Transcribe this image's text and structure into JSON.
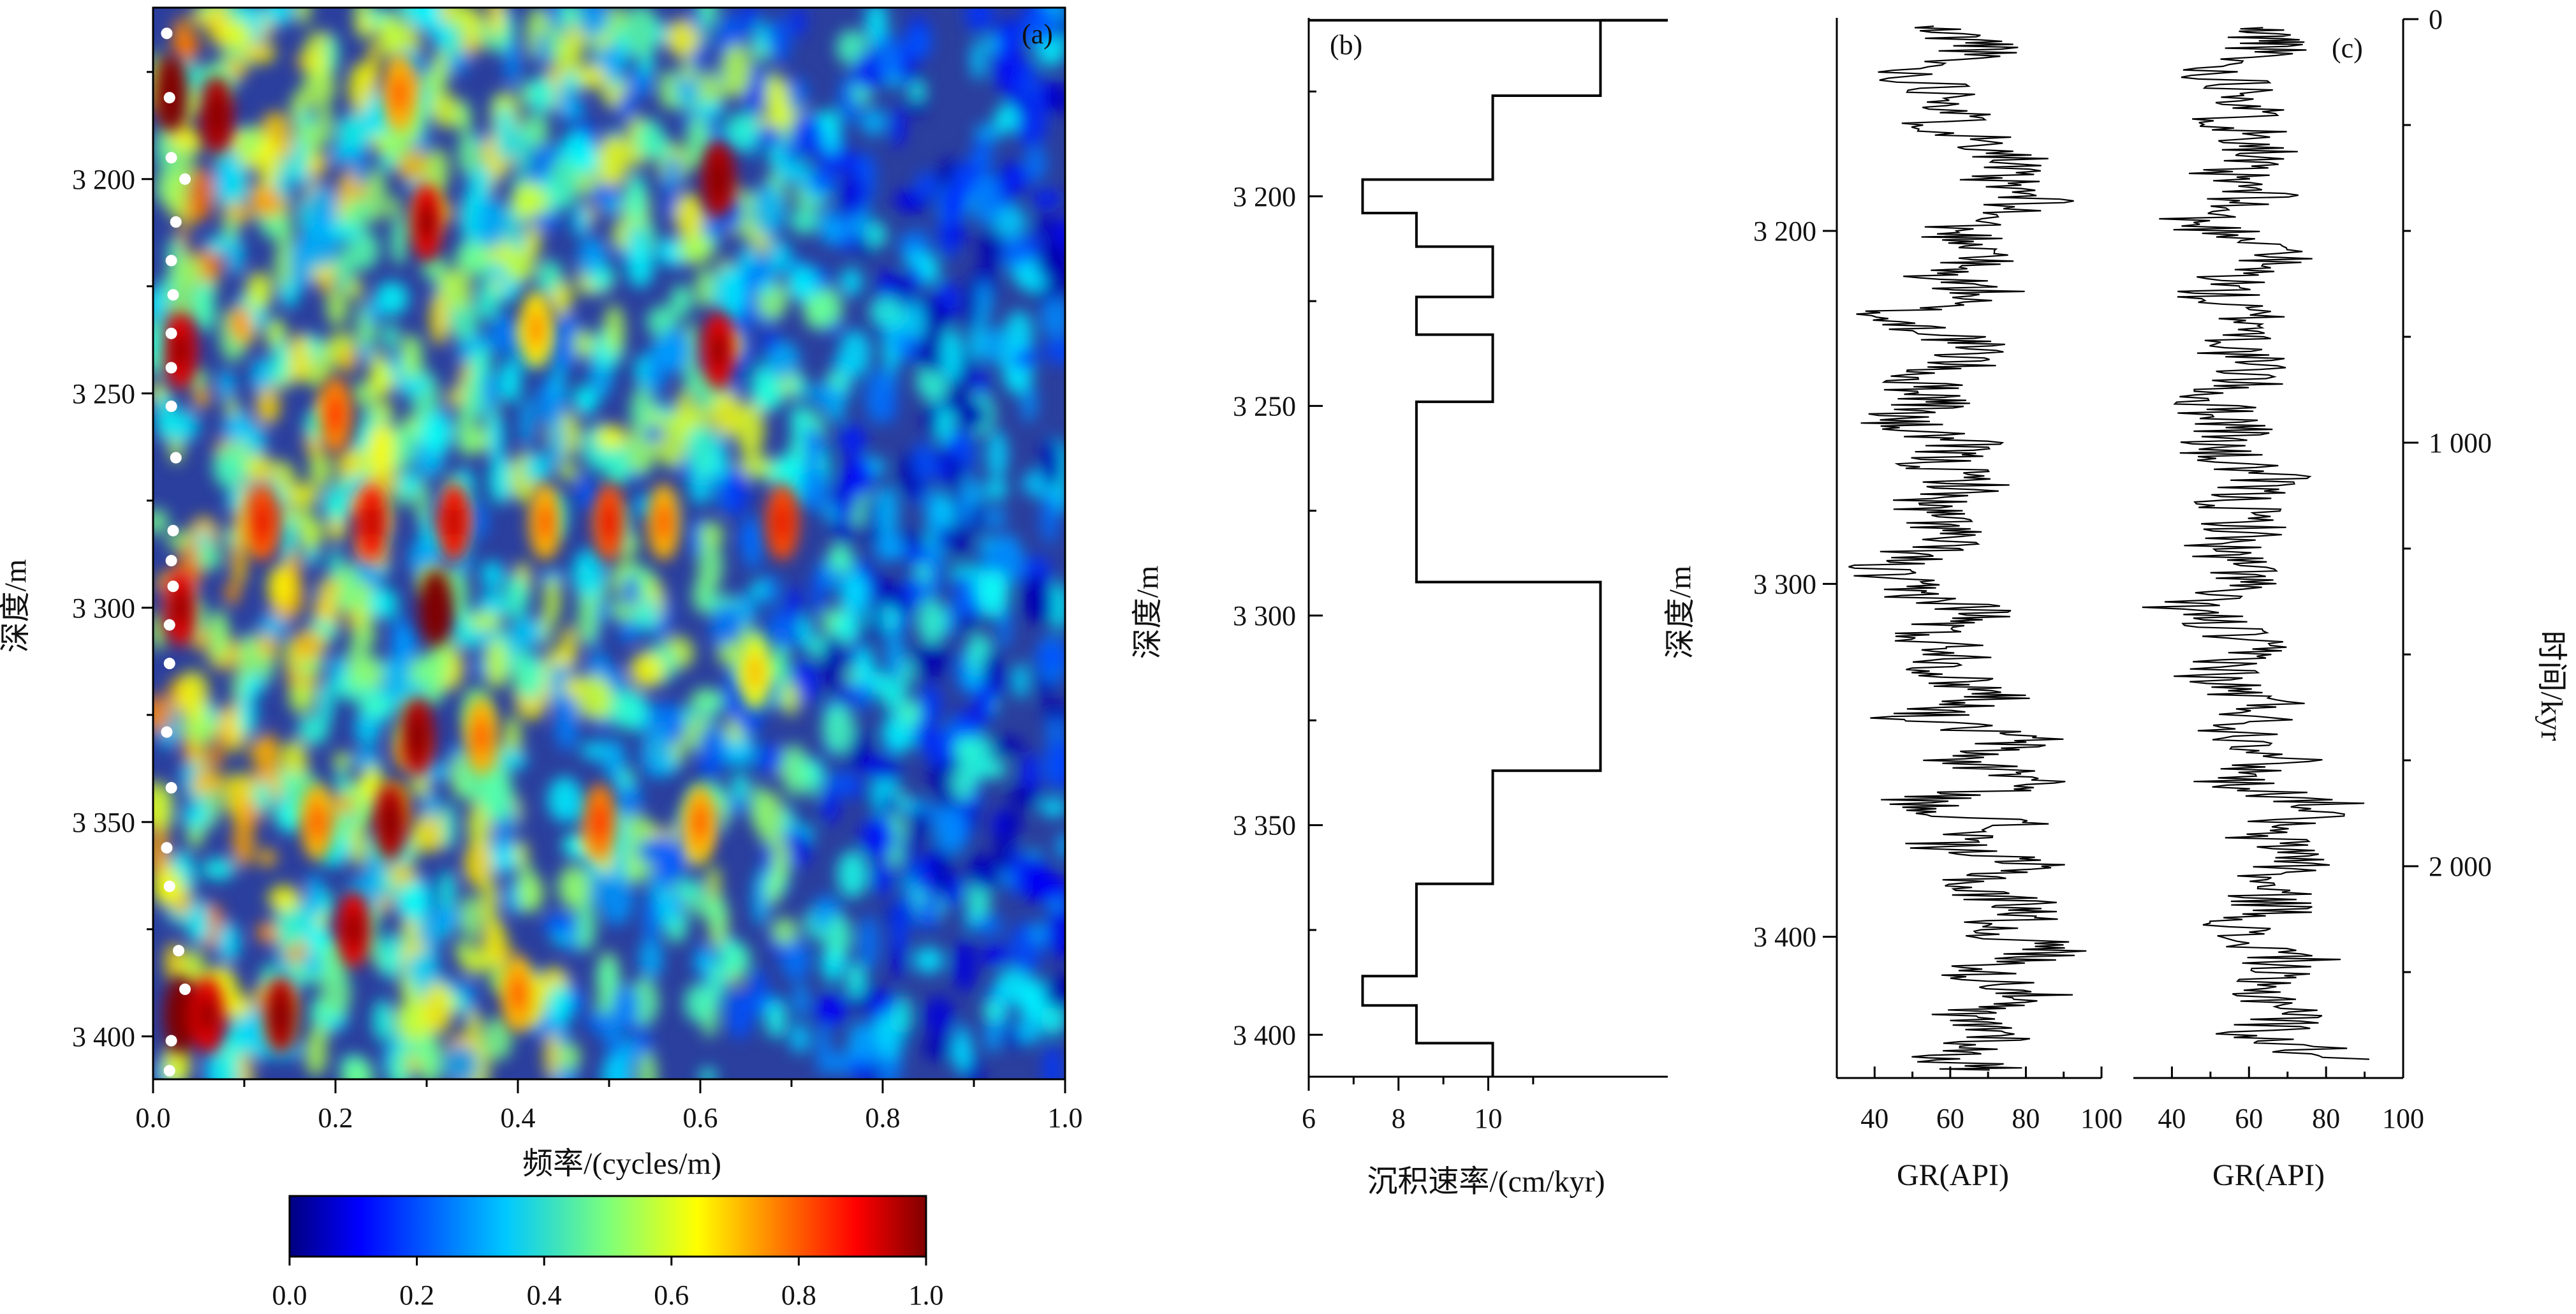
{
  "chart_data": [
    {
      "panel": "(a)",
      "type": "heatmap",
      "xlabel": "频率/(cycles/m)",
      "ylabel": "深度/m",
      "xlim": [
        0.0,
        1.0
      ],
      "ylim": [
        3410,
        3160
      ],
      "x_ticks": [
        "0.0",
        "0.2",
        "0.4",
        "0.6",
        "0.8",
        "1.0"
      ],
      "x_tick_values": [
        0.0,
        0.2,
        0.4,
        0.6,
        0.8,
        1.0
      ],
      "y_ticks": [
        "3 200",
        "3 250",
        "3 300",
        "3 350",
        "3 400"
      ],
      "y_tick_values": [
        3200,
        3250,
        3300,
        3350,
        3400
      ],
      "colorbar": {
        "ticks": [
          "0.0",
          "0.2",
          "0.4",
          "0.6",
          "0.8",
          "1.0"
        ],
        "tick_values": [
          0.0,
          0.2,
          0.4,
          0.6,
          0.8,
          1.0
        ],
        "colormap": "jet",
        "range": [
          0.0,
          1.0
        ]
      },
      "ridge_points": {
        "marker": "white-dot",
        "points": [
          [
            0.015,
            3166
          ],
          [
            0.018,
            3181
          ],
          [
            0.02,
            3195
          ],
          [
            0.035,
            3200
          ],
          [
            0.025,
            3210
          ],
          [
            0.02,
            3219
          ],
          [
            0.022,
            3227
          ],
          [
            0.02,
            3236
          ],
          [
            0.02,
            3244
          ],
          [
            0.02,
            3253
          ],
          [
            0.025,
            3265
          ],
          [
            0.022,
            3282
          ],
          [
            0.02,
            3289
          ],
          [
            0.022,
            3295
          ],
          [
            0.018,
            3304
          ],
          [
            0.018,
            3313
          ],
          [
            0.015,
            3329
          ],
          [
            0.02,
            3342
          ],
          [
            0.015,
            3356
          ],
          [
            0.018,
            3365
          ],
          [
            0.028,
            3380
          ],
          [
            0.035,
            3389
          ],
          [
            0.02,
            3401
          ],
          [
            0.018,
            3408
          ]
        ]
      },
      "hotspots": [
        [
          0.02,
          3180,
          1.0
        ],
        [
          0.07,
          3185,
          0.95
        ],
        [
          0.03,
          3240,
          0.9
        ],
        [
          0.03,
          3300,
          0.9
        ],
        [
          0.03,
          3395,
          1.0
        ],
        [
          0.06,
          3395,
          0.9
        ],
        [
          0.14,
          3395,
          0.95
        ],
        [
          0.31,
          3300,
          1.0
        ],
        [
          0.26,
          3350,
          0.95
        ],
        [
          0.22,
          3375,
          0.9
        ],
        [
          0.3,
          3210,
          0.9
        ],
        [
          0.62,
          3200,
          0.95
        ],
        [
          0.62,
          3240,
          0.9
        ],
        [
          0.33,
          3280,
          0.85
        ],
        [
          0.5,
          3280,
          0.8
        ],
        [
          0.69,
          3280,
          0.8
        ],
        [
          0.49,
          3350,
          0.75
        ],
        [
          0.6,
          3350,
          0.7
        ],
        [
          0.27,
          3180,
          0.7
        ],
        [
          0.2,
          3255,
          0.75
        ],
        [
          0.18,
          3350,
          0.7
        ],
        [
          0.36,
          3330,
          0.7
        ],
        [
          0.42,
          3235,
          0.65
        ],
        [
          0.12,
          3280,
          0.8
        ],
        [
          0.24,
          3280,
          0.85
        ],
        [
          0.56,
          3280,
          0.7
        ],
        [
          0.43,
          3280,
          0.7
        ],
        [
          0.66,
          3315,
          0.6
        ],
        [
          0.4,
          3390,
          0.7
        ],
        [
          0.29,
          3330,
          0.95
        ]
      ]
    },
    {
      "panel": "(b)",
      "type": "line",
      "xlabel": "沉积速率/(cm/kyr)",
      "ylabel": "深度/m",
      "xlim": [
        6,
        14
      ],
      "ylim": [
        3410,
        3160
      ],
      "x_ticks": [
        "6",
        "8",
        "10"
      ],
      "x_tick_values": [
        6,
        8,
        10
      ],
      "y_ticks": [
        "3 200",
        "3 250",
        "3 300",
        "3 350",
        "3 400"
      ],
      "y_tick_values": [
        3200,
        3250,
        3300,
        3350,
        3400
      ],
      "steps": [
        {
          "rate": 14.0,
          "from": 3158,
          "to": 3158
        },
        {
          "rate": 12.5,
          "from": 3158,
          "to": 3176
        },
        {
          "rate": 10.1,
          "from": 3176,
          "to": 3196
        },
        {
          "rate": 7.2,
          "from": 3196,
          "to": 3204
        },
        {
          "rate": 8.4,
          "from": 3204,
          "to": 3212
        },
        {
          "rate": 10.1,
          "from": 3212,
          "to": 3224
        },
        {
          "rate": 8.4,
          "from": 3224,
          "to": 3233
        },
        {
          "rate": 10.1,
          "from": 3233,
          "to": 3249
        },
        {
          "rate": 8.4,
          "from": 3249,
          "to": 3292
        },
        {
          "rate": 12.5,
          "from": 3292,
          "to": 3337
        },
        {
          "rate": 10.1,
          "from": 3337,
          "to": 3364
        },
        {
          "rate": 8.4,
          "from": 3364,
          "to": 3386
        },
        {
          "rate": 7.2,
          "from": 3386,
          "to": 3393
        },
        {
          "rate": 8.4,
          "from": 3393,
          "to": 3402
        },
        {
          "rate": 10.1,
          "from": 3402,
          "to": 3410
        }
      ]
    },
    {
      "panel": "(c)",
      "type": "line",
      "xlabel_depth_track": "GR(API)",
      "xlabel_time_track": "GR(API)",
      "ylabel_left": "深度/m",
      "ylabel_right": "时间/kyr",
      "xlim": [
        30,
        100
      ],
      "x_ticks": [
        "40",
        "60",
        "80",
        "100"
      ],
      "x_tick_values": [
        40,
        60,
        80,
        100
      ],
      "depth_axis": {
        "range": [
          3140,
          3440
        ],
        "ticks": [
          "3 200",
          "3 300",
          "3 400"
        ],
        "tick_values": [
          3200,
          3300,
          3400
        ]
      },
      "time_axis": {
        "range": [
          0,
          2500
        ],
        "ticks": [
          "0",
          "1 000",
          "2 000"
        ],
        "tick_values": [
          0,
          1000,
          2000
        ]
      },
      "gr_depth_series": [
        [
          3142,
          52
        ],
        [
          3148,
          72
        ],
        [
          3155,
          48
        ],
        [
          3163,
          65
        ],
        [
          3170,
          58
        ],
        [
          3178,
          78
        ],
        [
          3185,
          70
        ],
        [
          3192,
          82
        ],
        [
          3200,
          60
        ],
        [
          3206,
          74
        ],
        [
          3212,
          56
        ],
        [
          3218,
          70
        ],
        [
          3224,
          40
        ],
        [
          3230,
          62
        ],
        [
          3236,
          66
        ],
        [
          3242,
          50
        ],
        [
          3248,
          58
        ],
        [
          3254,
          44
        ],
        [
          3260,
          62
        ],
        [
          3266,
          56
        ],
        [
          3272,
          66
        ],
        [
          3278,
          52
        ],
        [
          3284,
          60
        ],
        [
          3290,
          55
        ],
        [
          3296,
          40
        ],
        [
          3302,
          48
        ],
        [
          3308,
          70
        ],
        [
          3314,
          52
        ],
        [
          3320,
          64
        ],
        [
          3326,
          58
        ],
        [
          3332,
          74
        ],
        [
          3338,
          50
        ],
        [
          3344,
          80
        ],
        [
          3350,
          62
        ],
        [
          3356,
          86
        ],
        [
          3362,
          48
        ],
        [
          3368,
          76
        ],
        [
          3374,
          58
        ],
        [
          3380,
          80
        ],
        [
          3386,
          62
        ],
        [
          3392,
          84
        ],
        [
          3398,
          70
        ],
        [
          3404,
          88
        ],
        [
          3410,
          66
        ],
        [
          3416,
          82
        ],
        [
          3422,
          60
        ],
        [
          3428,
          76
        ],
        [
          3434,
          58
        ],
        [
          3438,
          70
        ]
      ],
      "gr_time_series": [
        [
          20,
          60
        ],
        [
          60,
          68
        ],
        [
          120,
          50
        ],
        [
          180,
          64
        ],
        [
          240,
          56
        ],
        [
          300,
          66
        ],
        [
          360,
          52
        ],
        [
          420,
          62
        ],
        [
          480,
          44
        ],
        [
          540,
          72
        ],
        [
          600,
          58
        ],
        [
          660,
          50
        ],
        [
          720,
          64
        ],
        [
          780,
          56
        ],
        [
          840,
          62
        ],
        [
          900,
          48
        ],
        [
          960,
          58
        ],
        [
          1020,
          50
        ],
        [
          1080,
          64
        ],
        [
          1140,
          56
        ],
        [
          1200,
          60
        ],
        [
          1260,
          52
        ],
        [
          1320,
          62
        ],
        [
          1380,
          42
        ],
        [
          1440,
          54
        ],
        [
          1500,
          60
        ],
        [
          1560,
          50
        ],
        [
          1620,
          66
        ],
        [
          1680,
          58
        ],
        [
          1740,
          70
        ],
        [
          1800,
          56
        ],
        [
          1860,
          82
        ],
        [
          1920,
          60
        ],
        [
          1980,
          76
        ],
        [
          2040,
          62
        ],
        [
          2100,
          68
        ],
        [
          2160,
          54
        ],
        [
          2220,
          72
        ],
        [
          2280,
          58
        ],
        [
          2340,
          74
        ],
        [
          2400,
          62
        ],
        [
          2460,
          86
        ]
      ]
    }
  ]
}
